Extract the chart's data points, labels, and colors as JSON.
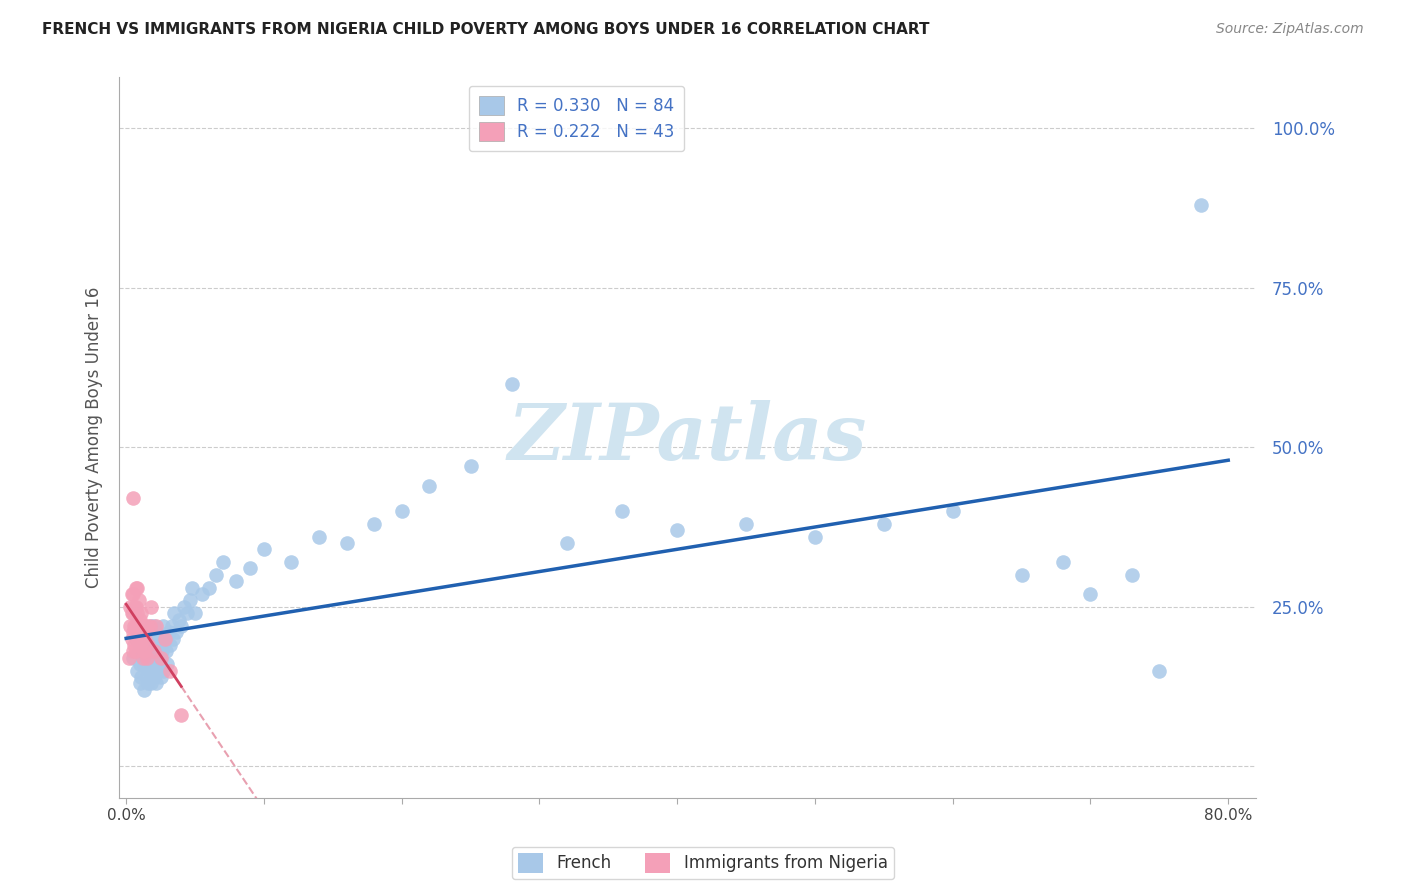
{
  "title": "FRENCH VS IMMIGRANTS FROM NIGERIA CHILD POVERTY AMONG BOYS UNDER 16 CORRELATION CHART",
  "source": "Source: ZipAtlas.com",
  "ylabel": "Child Poverty Among Boys Under 16",
  "xlim": [
    -0.005,
    0.82
  ],
  "ylim": [
    -0.05,
    1.08
  ],
  "xticks": [
    0.0,
    0.1,
    0.2,
    0.3,
    0.4,
    0.5,
    0.6,
    0.7,
    0.8
  ],
  "xticklabels": [
    "0.0%",
    "",
    "",
    "",
    "",
    "",
    "",
    "",
    "80.0%"
  ],
  "yticks": [
    0.0,
    0.25,
    0.5,
    0.75,
    1.0
  ],
  "yticklabels_right": [
    "",
    "25.0%",
    "50.0%",
    "75.0%",
    "100.0%"
  ],
  "french_R": 0.33,
  "french_N": 84,
  "nigeria_R": 0.222,
  "nigeria_N": 43,
  "french_color": "#a8c8e8",
  "nigeria_color": "#f4a0b8",
  "french_line_color": "#2060b0",
  "nigeria_line_color": "#d04060",
  "nigeria_dash_color": "#e8a0b0",
  "grid_color": "#cccccc",
  "watermark_color": "#d0e4f0",
  "french_x": [
    0.005,
    0.007,
    0.008,
    0.009,
    0.01,
    0.01,
    0.01,
    0.011,
    0.012,
    0.013,
    0.013,
    0.014,
    0.015,
    0.015,
    0.015,
    0.016,
    0.016,
    0.017,
    0.017,
    0.018,
    0.018,
    0.018,
    0.019,
    0.019,
    0.02,
    0.02,
    0.02,
    0.021,
    0.021,
    0.022,
    0.022,
    0.022,
    0.023,
    0.023,
    0.024,
    0.025,
    0.025,
    0.026,
    0.027,
    0.027,
    0.028,
    0.029,
    0.03,
    0.031,
    0.032,
    0.033,
    0.034,
    0.035,
    0.036,
    0.038,
    0.04,
    0.042,
    0.044,
    0.046,
    0.048,
    0.05,
    0.055,
    0.06,
    0.065,
    0.07,
    0.08,
    0.09,
    0.1,
    0.12,
    0.14,
    0.16,
    0.18,
    0.2,
    0.22,
    0.25,
    0.28,
    0.32,
    0.36,
    0.4,
    0.45,
    0.5,
    0.55,
    0.6,
    0.65,
    0.68,
    0.7,
    0.73,
    0.75,
    0.78
  ],
  "french_y": [
    0.17,
    0.2,
    0.15,
    0.18,
    0.13,
    0.16,
    0.19,
    0.14,
    0.17,
    0.12,
    0.16,
    0.19,
    0.14,
    0.17,
    0.21,
    0.13,
    0.18,
    0.15,
    0.2,
    0.13,
    0.16,
    0.22,
    0.15,
    0.19,
    0.14,
    0.18,
    0.22,
    0.16,
    0.2,
    0.13,
    0.17,
    0.21,
    0.15,
    0.19,
    0.17,
    0.14,
    0.2,
    0.18,
    0.15,
    0.22,
    0.2,
    0.18,
    0.16,
    0.21,
    0.19,
    0.22,
    0.2,
    0.24,
    0.21,
    0.23,
    0.22,
    0.25,
    0.24,
    0.26,
    0.28,
    0.24,
    0.27,
    0.28,
    0.3,
    0.32,
    0.29,
    0.31,
    0.34,
    0.32,
    0.36,
    0.35,
    0.38,
    0.4,
    0.44,
    0.47,
    0.6,
    0.35,
    0.4,
    0.37,
    0.38,
    0.36,
    0.38,
    0.4,
    0.3,
    0.32,
    0.27,
    0.3,
    0.15,
    0.88
  ],
  "nigeria_x": [
    0.002,
    0.003,
    0.003,
    0.004,
    0.004,
    0.004,
    0.005,
    0.005,
    0.005,
    0.005,
    0.005,
    0.006,
    0.006,
    0.006,
    0.007,
    0.007,
    0.007,
    0.007,
    0.008,
    0.008,
    0.008,
    0.009,
    0.009,
    0.01,
    0.01,
    0.011,
    0.011,
    0.012,
    0.012,
    0.013,
    0.013,
    0.014,
    0.015,
    0.015,
    0.016,
    0.017,
    0.018,
    0.02,
    0.022,
    0.025,
    0.028,
    0.032,
    0.04
  ],
  "nigeria_y": [
    0.17,
    0.22,
    0.25,
    0.2,
    0.24,
    0.27,
    0.18,
    0.21,
    0.24,
    0.27,
    0.42,
    0.19,
    0.22,
    0.25,
    0.18,
    0.22,
    0.25,
    0.28,
    0.2,
    0.24,
    0.28,
    0.22,
    0.26,
    0.19,
    0.23,
    0.2,
    0.24,
    0.17,
    0.21,
    0.18,
    0.22,
    0.2,
    0.17,
    0.22,
    0.19,
    0.22,
    0.25,
    0.18,
    0.22,
    0.17,
    0.2,
    0.15,
    0.08
  ]
}
